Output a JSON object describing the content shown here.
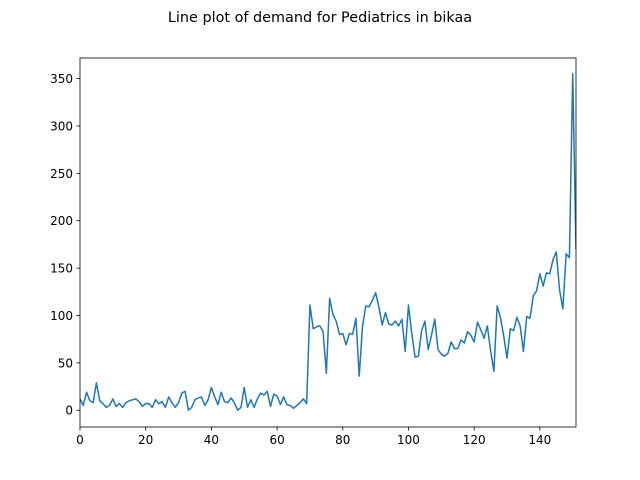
{
  "chart_data": {
    "type": "line",
    "title": "Line plot of demand for Pediatrics in bikaa",
    "xlabel": "",
    "ylabel": "",
    "xlim": [
      0,
      151
    ],
    "ylim": [
      -17.7,
      371.7
    ],
    "x_ticks": [
      0,
      20,
      40,
      60,
      80,
      100,
      120,
      140
    ],
    "y_ticks": [
      0,
      50,
      100,
      150,
      200,
      250,
      300,
      350
    ],
    "grid": false,
    "line_color": "#1f77b4",
    "series": [
      {
        "x": [
          0,
          1,
          2,
          3,
          4,
          5,
          6,
          7,
          8,
          9,
          10,
          11,
          12,
          13,
          14,
          15,
          16,
          17,
          18,
          19,
          20,
          21,
          22,
          23,
          24,
          25,
          26,
          27,
          28,
          29,
          30,
          31,
          32,
          33,
          34,
          35,
          36,
          37,
          38,
          39,
          40,
          41,
          42,
          43,
          44,
          45,
          46,
          47,
          48,
          49,
          50,
          51,
          52,
          53,
          54,
          55,
          56,
          57,
          58,
          59,
          60,
          61,
          62,
          63,
          64,
          65,
          66,
          67,
          68,
          69,
          70,
          71,
          72,
          73,
          74,
          75,
          76,
          77,
          78,
          79,
          80,
          81,
          82,
          83,
          84,
          85,
          86,
          87,
          88,
          89,
          90,
          91,
          92,
          93,
          94,
          95,
          96,
          97,
          98,
          99,
          100,
          101,
          102,
          103,
          104,
          105,
          106,
          107,
          108,
          109,
          110,
          111,
          112,
          113,
          114,
          115,
          116,
          117,
          118,
          119,
          120,
          121,
          122,
          123,
          124,
          125,
          126,
          127,
          128,
          129,
          130,
          131,
          132,
          133,
          134,
          135,
          136,
          137,
          138,
          139,
          140,
          141,
          142,
          143,
          144,
          145,
          146,
          147,
          148,
          149,
          150,
          151
        ],
        "values": [
          12,
          5,
          19,
          10,
          8,
          29,
          10,
          7,
          3,
          5,
          12,
          4,
          7,
          3,
          8,
          10,
          11,
          12,
          9,
          4,
          7,
          7,
          3,
          11,
          7,
          9,
          3,
          14,
          8,
          3,
          8,
          18,
          20,
          0,
          3,
          11,
          13,
          14,
          5,
          11,
          24,
          14,
          6,
          19,
          9,
          8,
          13,
          8,
          0,
          3,
          24,
          3,
          11,
          3,
          12,
          18,
          16,
          20,
          4,
          17,
          15,
          6,
          14,
          6,
          5,
          2,
          5,
          8,
          12,
          7,
          111,
          86,
          88,
          89,
          83,
          39,
          118,
          101,
          94,
          80,
          81,
          69,
          81,
          80,
          97,
          36,
          88,
          110,
          109,
          116,
          124,
          109,
          90,
          103,
          91,
          90,
          94,
          89,
          96,
          62,
          111,
          81,
          56,
          57,
          84,
          94,
          64,
          79,
          96,
          64,
          59,
          57,
          60,
          72,
          65,
          65,
          74,
          71,
          83,
          79,
          72,
          93,
          85,
          76,
          89,
          63,
          41,
          110,
          98,
          78,
          55,
          86,
          84,
          98,
          89,
          62,
          99,
          97,
          121,
          126,
          144,
          131,
          145,
          144,
          159,
          167,
          127,
          107,
          165,
          161,
          355,
          170
        ]
      }
    ]
  }
}
